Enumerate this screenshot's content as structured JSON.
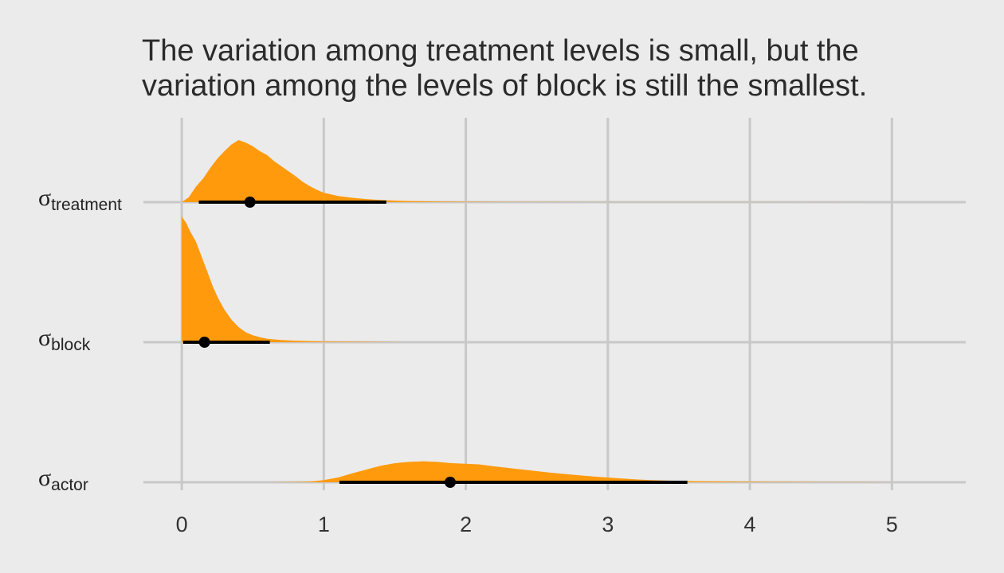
{
  "chart_data": {
    "type": "area",
    "title_lines": [
      "The variation among treatment levels is small, but the",
      "variation among the levels of block is still the smallest."
    ],
    "xlabel": "",
    "ylabel": "",
    "xlim": [
      -0.27,
      5.52
    ],
    "x_ticks": [
      0,
      1,
      2,
      3,
      4,
      5
    ],
    "grid": true,
    "fill_color": "#ff9a0d",
    "interval_color": "#000000",
    "background": "#ebebeb",
    "series": [
      {
        "label_symbol": "σ",
        "label_sub": "treatment",
        "point_estimate": 0.48,
        "interval": [
          0.12,
          1.44
        ],
        "density": [
          [
            0,
            0
          ],
          [
            0.05,
            0.08
          ],
          [
            0.1,
            0.25
          ],
          [
            0.15,
            0.38
          ],
          [
            0.2,
            0.55
          ],
          [
            0.25,
            0.7
          ],
          [
            0.3,
            0.82
          ],
          [
            0.35,
            0.93
          ],
          [
            0.4,
            1.0
          ],
          [
            0.45,
            0.96
          ],
          [
            0.5,
            0.9
          ],
          [
            0.55,
            0.82
          ],
          [
            0.6,
            0.76
          ],
          [
            0.65,
            0.66
          ],
          [
            0.7,
            0.58
          ],
          [
            0.75,
            0.5
          ],
          [
            0.8,
            0.42
          ],
          [
            0.85,
            0.33
          ],
          [
            0.9,
            0.26
          ],
          [
            0.95,
            0.2
          ],
          [
            1.0,
            0.15
          ],
          [
            1.1,
            0.1
          ],
          [
            1.2,
            0.07
          ],
          [
            1.3,
            0.05
          ],
          [
            1.4,
            0.035
          ],
          [
            1.5,
            0.025
          ],
          [
            1.6,
            0.018
          ],
          [
            1.8,
            0.01
          ],
          [
            2.0,
            0.006
          ],
          [
            2.3,
            0.003
          ],
          [
            3.0,
            0.0015
          ],
          [
            4.2,
            0.0008
          ],
          [
            4.8,
            0
          ]
        ]
      },
      {
        "label_symbol": "σ",
        "label_sub": "block",
        "point_estimate": 0.16,
        "interval": [
          0.01,
          0.62
        ],
        "density": [
          [
            0,
            0
          ],
          [
            0.0,
            1.0
          ],
          [
            0.03,
            0.95
          ],
          [
            0.06,
            0.88
          ],
          [
            0.1,
            0.8
          ],
          [
            0.14,
            0.68
          ],
          [
            0.18,
            0.56
          ],
          [
            0.22,
            0.44
          ],
          [
            0.26,
            0.34
          ],
          [
            0.3,
            0.26
          ],
          [
            0.35,
            0.18
          ],
          [
            0.4,
            0.12
          ],
          [
            0.45,
            0.08
          ],
          [
            0.5,
            0.055
          ],
          [
            0.55,
            0.04
          ],
          [
            0.6,
            0.028
          ],
          [
            0.7,
            0.018
          ],
          [
            0.8,
            0.012
          ],
          [
            1.0,
            0.006
          ],
          [
            1.3,
            0.003
          ],
          [
            1.6,
            0
          ]
        ]
      },
      {
        "label_symbol": "σ",
        "label_sub": "actor",
        "point_estimate": 1.89,
        "interval": [
          1.11,
          3.56
        ],
        "density": [
          [
            0.6,
            0
          ],
          [
            0.8,
            0.01
          ],
          [
            0.9,
            0.02
          ],
          [
            1.0,
            0.07
          ],
          [
            1.1,
            0.15
          ],
          [
            1.2,
            0.28
          ],
          [
            1.3,
            0.4
          ],
          [
            1.4,
            0.52
          ],
          [
            1.5,
            0.6
          ],
          [
            1.6,
            0.64
          ],
          [
            1.7,
            0.66
          ],
          [
            1.8,
            0.64
          ],
          [
            1.9,
            0.6
          ],
          [
            2.0,
            0.58
          ],
          [
            2.1,
            0.56
          ],
          [
            2.2,
            0.5
          ],
          [
            2.3,
            0.45
          ],
          [
            2.4,
            0.4
          ],
          [
            2.5,
            0.35
          ],
          [
            2.6,
            0.3
          ],
          [
            2.7,
            0.26
          ],
          [
            2.8,
            0.22
          ],
          [
            2.9,
            0.18
          ],
          [
            3.0,
            0.15
          ],
          [
            3.1,
            0.12
          ],
          [
            3.2,
            0.09
          ],
          [
            3.3,
            0.07
          ],
          [
            3.4,
            0.055
          ],
          [
            3.5,
            0.045
          ],
          [
            3.6,
            0.035
          ],
          [
            3.8,
            0.025
          ],
          [
            4.0,
            0.018
          ],
          [
            4.2,
            0.012
          ],
          [
            4.5,
            0.008
          ],
          [
            4.8,
            0.004
          ],
          [
            5.0,
            0
          ]
        ]
      }
    ]
  }
}
